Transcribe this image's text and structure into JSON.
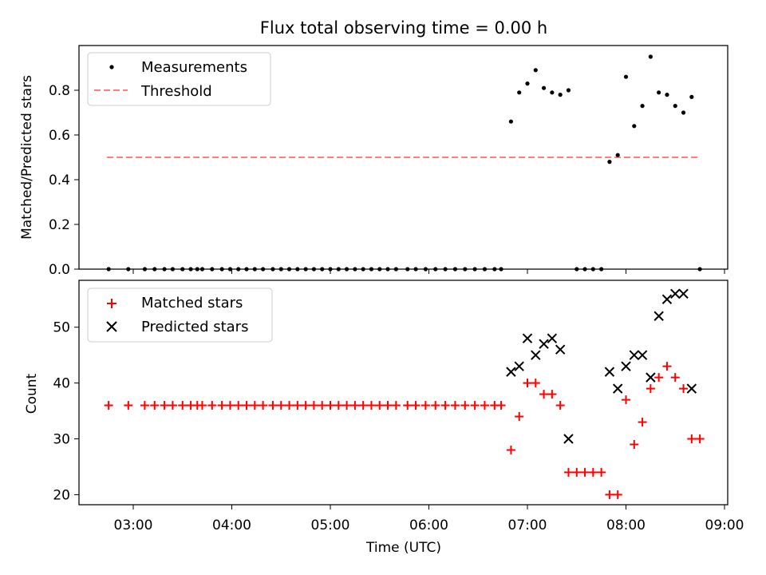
{
  "chart_data": [
    {
      "type": "scatter",
      "title": "Flux total observing time = 0.00 h",
      "xlabel": "",
      "ylabel": "Matched/Predicted stars",
      "ylim": [
        0,
        1.0
      ],
      "yticks": [
        "0.0",
        "0.2",
        "0.4",
        "0.6",
        "0.8"
      ],
      "legend_position": "upper-left",
      "series": [
        {
          "name": "Measurements",
          "color": "#000000",
          "marker": "dot",
          "points": [
            [
              "02:45",
              0
            ],
            [
              "02:57",
              0
            ],
            [
              "03:07",
              0
            ],
            [
              "03:13",
              0
            ],
            [
              "03:19",
              0
            ],
            [
              "03:24",
              0
            ],
            [
              "03:30",
              0
            ],
            [
              "03:35",
              0
            ],
            [
              "03:39",
              0
            ],
            [
              "03:42",
              0
            ],
            [
              "03:48",
              0
            ],
            [
              "03:54",
              0
            ],
            [
              "03:59",
              0
            ],
            [
              "04:04",
              0
            ],
            [
              "04:09",
              0
            ],
            [
              "04:14",
              0
            ],
            [
              "04:19",
              0
            ],
            [
              "04:25",
              0
            ],
            [
              "04:30",
              0
            ],
            [
              "04:35",
              0
            ],
            [
              "04:40",
              0
            ],
            [
              "04:45",
              0
            ],
            [
              "04:50",
              0
            ],
            [
              "04:55",
              0
            ],
            [
              "05:00",
              0
            ],
            [
              "05:05",
              0
            ],
            [
              "05:10",
              0
            ],
            [
              "05:15",
              0
            ],
            [
              "05:20",
              0
            ],
            [
              "05:25",
              0
            ],
            [
              "05:30",
              0
            ],
            [
              "05:35",
              0
            ],
            [
              "05:40",
              0
            ],
            [
              "05:47",
              0
            ],
            [
              "05:52",
              0
            ],
            [
              "05:58",
              0
            ],
            [
              "06:04",
              0
            ],
            [
              "06:10",
              0
            ],
            [
              "06:16",
              0
            ],
            [
              "06:22",
              0
            ],
            [
              "06:28",
              0
            ],
            [
              "06:34",
              0
            ],
            [
              "06:40",
              0
            ],
            [
              "06:44",
              0
            ],
            [
              "06:50",
              0.66
            ],
            [
              "06:55",
              0.79
            ],
            [
              "07:00",
              0.83
            ],
            [
              "07:05",
              0.89
            ],
            [
              "07:10",
              0.81
            ],
            [
              "07:15",
              0.79
            ],
            [
              "07:20",
              0.78
            ],
            [
              "07:25",
              0.8
            ],
            [
              "07:30",
              0
            ],
            [
              "07:35",
              0
            ],
            [
              "07:40",
              0
            ],
            [
              "07:45",
              0
            ],
            [
              "07:50",
              0.48
            ],
            [
              "07:55",
              0.51
            ],
            [
              "08:00",
              0.86
            ],
            [
              "08:05",
              0.64
            ],
            [
              "08:10",
              0.73
            ],
            [
              "08:15",
              0.95
            ],
            [
              "08:20",
              0.79
            ],
            [
              "08:25",
              0.78
            ],
            [
              "08:30",
              0.73
            ],
            [
              "08:35",
              0.7
            ],
            [
              "08:40",
              0.77
            ],
            [
              "08:45",
              0
            ]
          ]
        },
        {
          "name": "Threshold",
          "color": "#ff7f7f",
          "style": "dashed",
          "points": [
            [
              "02:44",
              0.5
            ],
            [
              "08:44",
              0.5
            ]
          ]
        }
      ]
    },
    {
      "type": "scatter",
      "xlabel": "Time (UTC)",
      "ylabel": "Count",
      "ylim": [
        18.2,
        58.4
      ],
      "yticks": [
        "20",
        "30",
        "40",
        "50"
      ],
      "xticks": [
        "03:00",
        "04:00",
        "05:00",
        "06:00",
        "07:00",
        "08:00",
        "09:00"
      ],
      "legend_position": "upper-left",
      "series": [
        {
          "name": "Matched stars",
          "color": "#ff0000",
          "marker": "plus",
          "points": [
            [
              "02:45",
              36
            ],
            [
              "02:57",
              36
            ],
            [
              "03:07",
              36
            ],
            [
              "03:13",
              36
            ],
            [
              "03:19",
              36
            ],
            [
              "03:24",
              36
            ],
            [
              "03:30",
              36
            ],
            [
              "03:35",
              36
            ],
            [
              "03:39",
              36
            ],
            [
              "03:42",
              36
            ],
            [
              "03:48",
              36
            ],
            [
              "03:54",
              36
            ],
            [
              "03:59",
              36
            ],
            [
              "04:04",
              36
            ],
            [
              "04:09",
              36
            ],
            [
              "04:14",
              36
            ],
            [
              "04:19",
              36
            ],
            [
              "04:25",
              36
            ],
            [
              "04:30",
              36
            ],
            [
              "04:35",
              36
            ],
            [
              "04:40",
              36
            ],
            [
              "04:45",
              36
            ],
            [
              "04:50",
              36
            ],
            [
              "04:55",
              36
            ],
            [
              "05:00",
              36
            ],
            [
              "05:05",
              36
            ],
            [
              "05:10",
              36
            ],
            [
              "05:15",
              36
            ],
            [
              "05:20",
              36
            ],
            [
              "05:25",
              36
            ],
            [
              "05:30",
              36
            ],
            [
              "05:35",
              36
            ],
            [
              "05:40",
              36
            ],
            [
              "05:47",
              36
            ],
            [
              "05:52",
              36
            ],
            [
              "05:58",
              36
            ],
            [
              "06:04",
              36
            ],
            [
              "06:10",
              36
            ],
            [
              "06:16",
              36
            ],
            [
              "06:22",
              36
            ],
            [
              "06:28",
              36
            ],
            [
              "06:34",
              36
            ],
            [
              "06:40",
              36
            ],
            [
              "06:44",
              36
            ],
            [
              "06:50",
              28
            ],
            [
              "06:55",
              34
            ],
            [
              "07:00",
              40
            ],
            [
              "07:05",
              40
            ],
            [
              "07:10",
              38
            ],
            [
              "07:15",
              38
            ],
            [
              "07:20",
              36
            ],
            [
              "07:25",
              24
            ],
            [
              "07:30",
              24
            ],
            [
              "07:35",
              24
            ],
            [
              "07:40",
              24
            ],
            [
              "07:45",
              24
            ],
            [
              "07:50",
              20
            ],
            [
              "07:55",
              20
            ],
            [
              "08:00",
              37
            ],
            [
              "08:05",
              29
            ],
            [
              "08:10",
              33
            ],
            [
              "08:15",
              39
            ],
            [
              "08:20",
              41
            ],
            [
              "08:25",
              43
            ],
            [
              "08:30",
              41
            ],
            [
              "08:35",
              39
            ],
            [
              "08:40",
              30
            ],
            [
              "08:45",
              30
            ]
          ]
        },
        {
          "name": "Predicted stars",
          "color": "#000000",
          "marker": "x",
          "points": [
            [
              "06:50",
              42
            ],
            [
              "06:55",
              43
            ],
            [
              "07:00",
              48
            ],
            [
              "07:05",
              45
            ],
            [
              "07:10",
              47
            ],
            [
              "07:15",
              48
            ],
            [
              "07:20",
              46
            ],
            [
              "07:25",
              30
            ],
            [
              "07:50",
              42
            ],
            [
              "07:55",
              39
            ],
            [
              "08:00",
              43
            ],
            [
              "08:05",
              45
            ],
            [
              "08:10",
              45
            ],
            [
              "08:15",
              41
            ],
            [
              "08:20",
              52
            ],
            [
              "08:25",
              55
            ],
            [
              "08:30",
              56
            ],
            [
              "08:35",
              56
            ],
            [
              "08:40",
              39
            ]
          ]
        }
      ]
    }
  ]
}
